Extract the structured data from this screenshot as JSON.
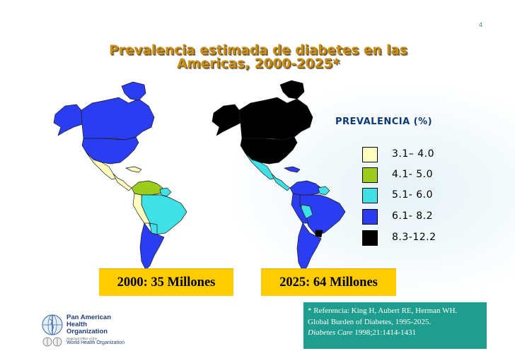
{
  "page_number": "4",
  "title_line1": "Prevalencia estimada de diabetes en las",
  "title_line2": "Americas, 2000-2025*",
  "legend": {
    "title": "PREVALENCIA (%)",
    "items": [
      {
        "label": "3.1– 4.0",
        "color": "#ffffc0"
      },
      {
        "label": "4.1- 5.0",
        "color": "#9ccc1c"
      },
      {
        "label": "5.1- 6.0",
        "color": "#3fe0e6"
      },
      {
        "label": "6.1- 8.2",
        "color": "#2b3df0"
      },
      {
        "label": "8.3-12.2",
        "color": "#000000"
      }
    ]
  },
  "totals": {
    "y2000": "2000: 35 Millones",
    "y2025": "2025: 64 Millones"
  },
  "reference": {
    "line1": "* Referencia: King H, Aubert RE, Herman WH.",
    "line2": "Global Burden of Diabetes, 1995-2025.",
    "journal": "Diabetes Care",
    "citation": " 1998;21:1414-1431"
  },
  "org": {
    "line1": "Pan American",
    "line2": "Health",
    "line3": "Organization",
    "who_small1": "Regional Office of the",
    "who_big": "World Health Organization"
  },
  "colors": {
    "title": "#c8901a",
    "count_box": "#ffcc00",
    "reference_box": "#1f9d8f",
    "legend_title": "#0e3a73"
  }
}
